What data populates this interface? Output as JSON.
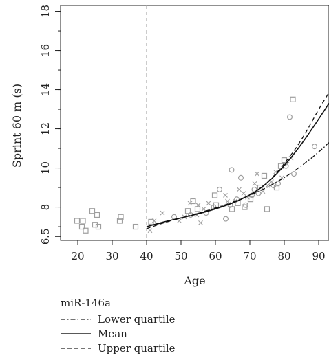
{
  "chart_data": {
    "type": "scatter",
    "title": "",
    "xlabel": "Age",
    "ylabel": "Sprint 60 m (s)",
    "xlim": [
      15,
      93
    ],
    "ylim": [
      6.3,
      18.3
    ],
    "xticks": [
      20,
      30,
      40,
      50,
      60,
      70,
      80,
      90
    ],
    "yticks": [
      6.5,
      8,
      10,
      12,
      14,
      16,
      18
    ],
    "vline_x": 40,
    "grid": false,
    "legend": {
      "position": "bottom-left",
      "title": "miR-146a",
      "entries": [
        "Lower quartile",
        "Mean",
        "Upper quartile"
      ]
    },
    "points": {
      "square": [
        [
          19.8,
          7.3
        ],
        [
          21.2,
          7.0
        ],
        [
          21.5,
          7.3
        ],
        [
          22.3,
          6.8
        ],
        [
          24.2,
          7.8
        ],
        [
          25.0,
          7.1
        ],
        [
          25.6,
          7.6
        ],
        [
          26.0,
          7.0
        ],
        [
          32.2,
          7.3
        ],
        [
          32.5,
          7.5
        ],
        [
          36.8,
          7.0
        ],
        [
          41.3,
          7.25
        ],
        [
          52.0,
          7.8
        ],
        [
          53.5,
          8.3
        ],
        [
          54.8,
          7.9
        ],
        [
          59.8,
          8.6
        ],
        [
          60.2,
          8.1
        ],
        [
          64.8,
          7.9
        ],
        [
          66.5,
          8.2
        ],
        [
          68.5,
          8.0
        ],
        [
          70.2,
          8.4
        ],
        [
          73.0,
          9.0
        ],
        [
          74.2,
          9.6
        ],
        [
          75.0,
          7.9
        ],
        [
          77.8,
          9.0
        ],
        [
          79.0,
          10.1
        ],
        [
          80.0,
          10.4
        ],
        [
          82.5,
          13.5
        ]
      ],
      "circle": [
        [
          48.0,
          7.5
        ],
        [
          52.8,
          7.6
        ],
        [
          57.3,
          7.7
        ],
        [
          59.5,
          8.0
        ],
        [
          61.2,
          8.9
        ],
        [
          63.0,
          7.4
        ],
        [
          64.3,
          8.1
        ],
        [
          64.7,
          9.9
        ],
        [
          66.2,
          8.4
        ],
        [
          67.4,
          9.5
        ],
        [
          68.8,
          8.1
        ],
        [
          70.6,
          8.6
        ],
        [
          71.3,
          8.9
        ],
        [
          72.5,
          8.7
        ],
        [
          76.9,
          9.1
        ],
        [
          78.2,
          9.2
        ],
        [
          80.5,
          10.1
        ],
        [
          81.6,
          12.6
        ],
        [
          82.8,
          9.7
        ],
        [
          88.8,
          11.1
        ]
      ],
      "cross": [
        [
          41.0,
          6.8
        ],
        [
          42.2,
          7.3
        ],
        [
          44.6,
          7.7
        ],
        [
          49.5,
          7.3
        ],
        [
          51.0,
          7.5
        ],
        [
          52.6,
          8.2
        ],
        [
          54.6,
          7.6
        ],
        [
          55.0,
          8.1
        ],
        [
          55.7,
          7.2
        ],
        [
          56.6,
          7.9
        ],
        [
          58.0,
          8.2
        ],
        [
          62.9,
          8.6
        ],
        [
          63.5,
          8.3
        ],
        [
          65.7,
          8.3
        ],
        [
          66.9,
          8.9
        ],
        [
          68.2,
          8.7
        ],
        [
          69.3,
          8.5
        ],
        [
          71.4,
          9.2
        ],
        [
          72.1,
          9.7
        ],
        [
          73.8,
          8.8
        ],
        [
          75.2,
          9.1
        ],
        [
          76.3,
          9.3
        ],
        [
          77.5,
          9.8
        ],
        [
          79.3,
          9.5
        ],
        [
          80.8,
          10.2
        ],
        [
          82.0,
          10.5
        ]
      ]
    },
    "series": [
      {
        "name": "Lower quartile",
        "x": [
          40,
          45,
          50,
          55,
          60,
          65,
          70,
          75,
          80,
          85,
          90,
          93
        ],
        "y": [
          7.0,
          7.22,
          7.44,
          7.68,
          7.95,
          8.25,
          8.6,
          9.0,
          9.5,
          10.1,
          10.8,
          11.3
        ]
      },
      {
        "name": "Mean",
        "x": [
          40,
          45,
          50,
          55,
          60,
          65,
          70,
          75,
          80,
          85,
          90,
          93
        ],
        "y": [
          7.0,
          7.25,
          7.45,
          7.65,
          7.9,
          8.2,
          8.6,
          9.2,
          10.1,
          11.2,
          12.5,
          13.3
        ]
      },
      {
        "name": "Upper quartile",
        "x": [
          40,
          45,
          50,
          55,
          60,
          65,
          70,
          75,
          80,
          85,
          90,
          93
        ],
        "y": [
          6.9,
          7.2,
          7.45,
          7.68,
          7.93,
          8.22,
          8.6,
          9.2,
          10.2,
          11.4,
          13.0,
          13.85
        ]
      }
    ]
  }
}
